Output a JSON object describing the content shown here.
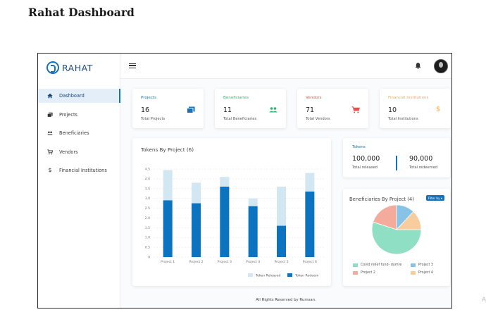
{
  "page": {
    "title": "Rahat Dashboard"
  },
  "sidebar": {
    "logo_text": "RAHAT",
    "items": [
      {
        "label": "Dashboard",
        "icon": "home-icon"
      },
      {
        "label": "Projects",
        "icon": "projects-icon"
      },
      {
        "label": "Beneficiaries",
        "icon": "people-icon"
      },
      {
        "label": "Vendors",
        "icon": "cart-icon"
      },
      {
        "label": "Financial Institutions",
        "icon": "dollar-icon"
      }
    ]
  },
  "stats": [
    {
      "title": "Projects",
      "value": "16",
      "sub": "Total Projects",
      "color": "#1771b8",
      "icon": "projects-icon"
    },
    {
      "title": "Beneficiaries",
      "value": "11",
      "sub": "Total Beneficiaries",
      "color": "#2bb673",
      "icon": "people-icon"
    },
    {
      "title": "Vendors",
      "value": "71",
      "sub": "Total Vendors",
      "color": "#e8504f",
      "icon": "cart-icon"
    },
    {
      "title": "Financial Institutions",
      "value": "10",
      "sub": "Total Institutions",
      "color": "#f5a94a",
      "icon": "dollar-icon"
    }
  ],
  "tokens": {
    "title": "Tokens",
    "released_value": "100,000",
    "released_label": "Total released",
    "redeemed_value": "90,000",
    "redeemed_label": "Total redeemed"
  },
  "bar_chart_title": "Tokens By Project (6)",
  "pie_chart_title": "Beneficiaries By Project (4)",
  "pie_filter_label": "Filter by ▾",
  "footer": "All Rights Reserved by Rumsan.",
  "watermark": "A",
  "colors": {
    "primary": "#1771b8",
    "bar_released": "#d3e7f3",
    "bar_redeem": "#0b73bf"
  },
  "chart_data": [
    {
      "type": "bar",
      "title": "Tokens By Project (6)",
      "categories": [
        "Project 1",
        "Project 2",
        "Project 3",
        "Project 4",
        "Project 5",
        "Project 6"
      ],
      "series": [
        {
          "name": "Token Released",
          "values": [
            4.45,
            3.8,
            4.1,
            3.0,
            3.6,
            4.3
          ]
        },
        {
          "name": "Token Redeem",
          "values": [
            2.9,
            2.75,
            3.6,
            2.6,
            1.6,
            3.35
          ]
        }
      ],
      "ylim": [
        0,
        4.5
      ],
      "yticks": [
        "0",
        "0.5",
        "1.0",
        "1.5",
        "2.0",
        "2.5",
        "3.0",
        "3.5",
        "4.0",
        "4.5"
      ],
      "legend": "bottom-right",
      "grid": true
    },
    {
      "type": "pie",
      "title": "Beneficiaries By Project (4)",
      "categories": [
        "Covid relief fund- dumre",
        "Project 2",
        "Project 3",
        "Project 4"
      ],
      "values": [
        0.55,
        0.2,
        0.12,
        0.13
      ],
      "colors": [
        "#8fdfc4",
        "#f4ab9b",
        "#86c3e6",
        "#f7cd9d"
      ],
      "legend": "bottom"
    }
  ]
}
